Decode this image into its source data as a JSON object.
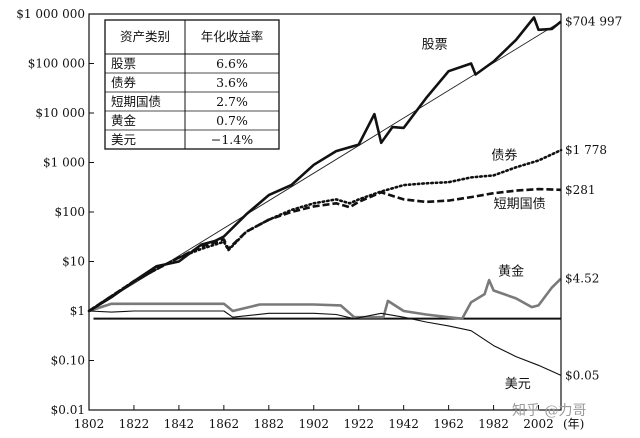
{
  "chart_data": {
    "type": "line",
    "title": "",
    "xlabel": "(年)",
    "ylabel": "",
    "y_scale": "log",
    "xlim": [
      1802,
      2012
    ],
    "ylim": [
      0.01,
      1000000
    ],
    "y_ticks": [
      {
        "value": 1000000,
        "label": "$1 000 000"
      },
      {
        "value": 100000,
        "label": "$100 000"
      },
      {
        "value": 10000,
        "label": "$10 000"
      },
      {
        "value": 1000,
        "label": "$1 000"
      },
      {
        "value": 100,
        "label": "$100"
      },
      {
        "value": 10,
        "label": "$10"
      },
      {
        "value": 1,
        "label": "$1"
      },
      {
        "value": 0.1,
        "label": "$0.10"
      },
      {
        "value": 0.01,
        "label": "$0.01"
      }
    ],
    "x_ticks": [
      1802,
      1822,
      1842,
      1862,
      1882,
      1902,
      1922,
      1942,
      1962,
      1982,
      2002
    ],
    "x_unit_label": "(年)",
    "grid": false,
    "reference_line": {
      "value": 0.7
    },
    "table": {
      "headers": [
        "资产类别",
        "年化收益率"
      ],
      "rows": [
        [
          "股票",
          "6.6%"
        ],
        [
          "债券",
          "3.6%"
        ],
        [
          "短期国债",
          "2.7%"
        ],
        [
          "黄金",
          "0.7%"
        ],
        [
          "美元",
          "−1.4%"
        ]
      ]
    },
    "series": [
      {
        "name": "股票",
        "end_label": "$704 997",
        "style": "thick-solid",
        "x": [
          1802,
          1812,
          1822,
          1832,
          1842,
          1852,
          1858,
          1862,
          1872,
          1882,
          1892,
          1902,
          1912,
          1922,
          1929,
          1932,
          1937,
          1942,
          1952,
          1962,
          1972,
          1974,
          1982,
          1992,
          2000,
          2002,
          2008,
          2012
        ],
        "y": [
          1,
          1.9,
          4,
          8,
          10,
          22,
          26,
          32,
          90,
          220,
          350,
          900,
          1700,
          2300,
          9500,
          2500,
          5200,
          5000,
          20000,
          70000,
          100000,
          60000,
          110000,
          300000,
          850000,
          480000,
          500000,
          704997
        ]
      },
      {
        "name": "",
        "style": "thin-trend",
        "x": [
          1802,
          2012
        ],
        "y": [
          1,
          704997
        ]
      },
      {
        "name": "债券",
        "end_label": "$1 778",
        "style": "dotted",
        "x": [
          1802,
          1812,
          1822,
          1832,
          1842,
          1852,
          1862,
          1864,
          1872,
          1882,
          1892,
          1902,
          1912,
          1918,
          1922,
          1932,
          1942,
          1952,
          1962,
          1972,
          1982,
          1992,
          2002,
          2012
        ],
        "y": [
          1,
          2,
          4,
          7,
          12,
          18,
          25,
          17,
          40,
          70,
          110,
          150,
          180,
          150,
          180,
          260,
          350,
          380,
          400,
          500,
          550,
          800,
          1100,
          1778
        ]
      },
      {
        "name": "短期国债",
        "end_label": "$281",
        "style": "dashed",
        "x": [
          1802,
          1812,
          1822,
          1832,
          1842,
          1852,
          1862,
          1864,
          1872,
          1882,
          1892,
          1902,
          1912,
          1918,
          1922,
          1932,
          1942,
          1952,
          1962,
          1972,
          1982,
          1992,
          2002,
          2012
        ],
        "y": [
          1,
          2,
          4,
          7,
          12,
          20,
          28,
          18,
          40,
          70,
          100,
          130,
          150,
          125,
          160,
          250,
          180,
          160,
          170,
          200,
          240,
          270,
          290,
          281
        ]
      },
      {
        "name": "黄金",
        "end_label": "$4.52",
        "style": "gray-solid",
        "x": [
          1802,
          1812,
          1822,
          1842,
          1862,
          1866,
          1878,
          1902,
          1914,
          1920,
          1933,
          1935,
          1942,
          1952,
          1962,
          1968,
          1972,
          1978,
          1980,
          1982,
          1992,
          1999,
          2002,
          2008,
          2012
        ],
        "y": [
          1,
          1.4,
          1.4,
          1.4,
          1.4,
          1.0,
          1.35,
          1.35,
          1.3,
          0.75,
          0.75,
          1.6,
          1.0,
          0.85,
          0.75,
          0.7,
          1.5,
          2.2,
          4.2,
          2.6,
          1.8,
          1.2,
          1.3,
          3.0,
          4.52
        ]
      },
      {
        "name": "美元",
        "end_label": "$0.05",
        "style": "thin-solid",
        "x": [
          1802,
          1812,
          1822,
          1842,
          1862,
          1866,
          1882,
          1902,
          1912,
          1920,
          1932,
          1942,
          1952,
          1962,
          1972,
          1982,
          1992,
          2002,
          2012
        ],
        "y": [
          1,
          0.95,
          1.0,
          1.0,
          1.0,
          0.75,
          0.9,
          0.9,
          0.85,
          0.7,
          0.9,
          0.75,
          0.6,
          0.5,
          0.4,
          0.2,
          0.12,
          0.08,
          0.05
        ]
      }
    ]
  },
  "watermark": "知乎 @力哥"
}
